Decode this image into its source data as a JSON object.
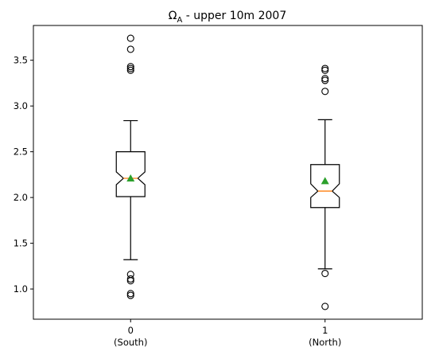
{
  "chart_data": {
    "type": "boxplot",
    "title": "Ω_A - upper 10m 2007",
    "title_main": "Ω",
    "title_sub": "A",
    "title_rest": " - upper 10m 2007",
    "notched": true,
    "show_means": true,
    "grid": false,
    "xlabel": "",
    "ylabel": "",
    "ylim": [
      0.67,
      3.88
    ],
    "yticks": [
      1.0,
      1.5,
      2.0,
      2.5,
      3.0,
      3.5
    ],
    "ytick_labels": [
      "1.0",
      "1.5",
      "2.0",
      "2.5",
      "3.0",
      "3.5"
    ],
    "xlim": [
      -0.5,
      1.5
    ],
    "categories": [
      {
        "tick": "0",
        "name": "(South)"
      },
      {
        "tick": "1",
        "name": "(North)"
      }
    ],
    "colors": {
      "box": "#000000",
      "median": "#ff7f0e",
      "mean": "#2ca02c",
      "flier": "#000000"
    },
    "boxes": [
      {
        "x": 0,
        "whisker_low": 1.32,
        "q1": 2.01,
        "median": 2.21,
        "q3": 2.5,
        "whisker_high": 2.84,
        "notch_low": 2.14,
        "notch_high": 2.28,
        "mean": 2.21,
        "fliers": [
          3.74,
          3.62,
          3.43,
          3.41,
          3.39,
          1.16,
          1.11,
          1.09,
          0.95,
          0.93
        ]
      },
      {
        "x": 1,
        "whisker_low": 1.22,
        "q1": 1.89,
        "median": 2.07,
        "q3": 2.36,
        "whisker_high": 2.85,
        "notch_low": 2.0,
        "notch_high": 2.15,
        "mean": 2.18,
        "fliers": [
          3.41,
          3.39,
          3.3,
          3.28,
          3.16,
          1.17,
          0.81
        ]
      }
    ]
  }
}
